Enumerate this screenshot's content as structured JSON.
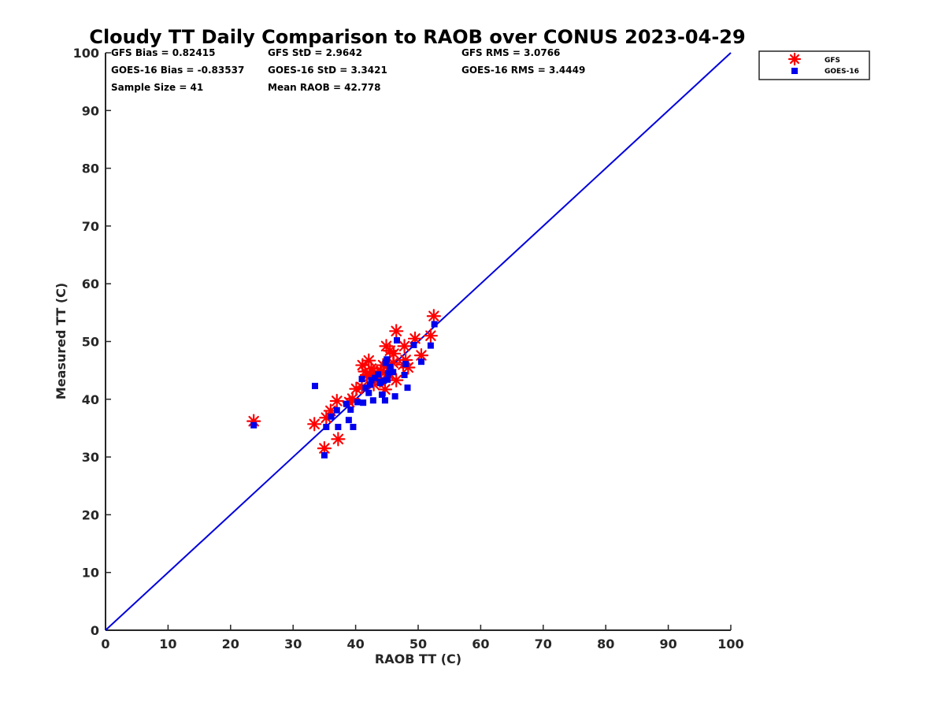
{
  "chart_data": {
    "type": "scatter",
    "title": "Cloudy TT Daily Comparison to RAOB over CONUS 2023-04-29",
    "xlabel": "RAOB TT (C)",
    "ylabel": "Measured TT (C)",
    "xlim": [
      0,
      100
    ],
    "ylim": [
      0,
      100
    ],
    "xticks": [
      "0",
      "10",
      "20",
      "30",
      "40",
      "50",
      "60",
      "70",
      "80",
      "90",
      "100"
    ],
    "yticks": [
      "0",
      "10",
      "20",
      "30",
      "40",
      "50",
      "60",
      "70",
      "80",
      "90",
      "100"
    ],
    "grid": false,
    "legend_position": "outside-top-right",
    "stats": {
      "gfs_bias": "GFS Bias = 0.82415",
      "gfs_std": "GFS StD = 2.9642",
      "gfs_rms": "GFS RMS = 3.0766",
      "goes_bias": "GOES-16 Bias = -0.83537",
      "goes_std": "GOES-16 StD = 3.3421",
      "goes_rms": "GOES-16 RMS = 3.4449",
      "sample_size": "Sample Size = 41",
      "mean_raob": "Mean RAOB = 42.778"
    },
    "reference_line": {
      "name": "1:1 line",
      "x": [
        0,
        100
      ],
      "y": [
        0,
        100
      ],
      "color": "#0000dd"
    },
    "series": [
      {
        "name": "GFS",
        "marker": "asterisk",
        "color": "#ff0000",
        "points": [
          [
            23.7,
            36.2
          ],
          [
            33.4,
            35.7
          ],
          [
            35.0,
            31.5
          ],
          [
            35.3,
            36.8
          ],
          [
            36.0,
            38.0
          ],
          [
            37.2,
            33.1
          ],
          [
            37.0,
            39.7
          ],
          [
            39.0,
            39.5
          ],
          [
            40.1,
            41.8
          ],
          [
            41.0,
            42.1
          ],
          [
            41.1,
            45.9
          ],
          [
            41.8,
            44.2
          ],
          [
            42.1,
            46.7
          ],
          [
            42.5,
            45.3
          ],
          [
            43.0,
            44.5
          ],
          [
            43.7,
            43.6
          ],
          [
            44.0,
            44.8
          ],
          [
            44.4,
            45.9
          ],
          [
            44.7,
            41.7
          ],
          [
            44.9,
            49.2
          ],
          [
            45.2,
            44.3
          ],
          [
            45.5,
            48.4
          ],
          [
            46.1,
            47.9
          ],
          [
            46.5,
            43.3
          ],
          [
            46.5,
            51.8
          ],
          [
            47.8,
            49.2
          ],
          [
            48.0,
            46.8
          ],
          [
            48.4,
            45.5
          ],
          [
            49.5,
            50.5
          ],
          [
            50.5,
            47.6
          ],
          [
            52.0,
            51.0
          ],
          [
            52.5,
            54.4
          ],
          [
            42.9,
            42.6
          ],
          [
            43.9,
            43.2
          ],
          [
            45.0,
            45.7
          ],
          [
            46.0,
            46.3
          ],
          [
            39.5,
            40.1
          ],
          [
            42.2,
            43.9
          ],
          [
            44.1,
            44.9
          ],
          [
            47.6,
            46.0
          ],
          [
            41.5,
            44.8
          ]
        ]
      },
      {
        "name": "GOES-16",
        "marker": "square",
        "color": "#0000ee",
        "points": [
          [
            23.7,
            35.5
          ],
          [
            33.5,
            42.3
          ],
          [
            35.0,
            30.3
          ],
          [
            35.3,
            35.2
          ],
          [
            36.1,
            37.0
          ],
          [
            37.0,
            38.1
          ],
          [
            37.2,
            35.2
          ],
          [
            38.5,
            39.2
          ],
          [
            38.9,
            36.4
          ],
          [
            39.2,
            38.2
          ],
          [
            39.6,
            35.2
          ],
          [
            40.3,
            39.5
          ],
          [
            41.0,
            43.5
          ],
          [
            41.2,
            39.4
          ],
          [
            41.6,
            42.0
          ],
          [
            42.1,
            41.1
          ],
          [
            42.3,
            42.5
          ],
          [
            42.8,
            39.8
          ],
          [
            43.1,
            43.7
          ],
          [
            43.6,
            44.3
          ],
          [
            43.9,
            42.8
          ],
          [
            44.2,
            40.8
          ],
          [
            44.5,
            43.2
          ],
          [
            44.7,
            39.8
          ],
          [
            45.0,
            46.9
          ],
          [
            45.2,
            44.5
          ],
          [
            45.5,
            45.6
          ],
          [
            46.0,
            44.7
          ],
          [
            46.3,
            40.5
          ],
          [
            46.6,
            50.2
          ],
          [
            47.8,
            44.2
          ],
          [
            48.0,
            46.1
          ],
          [
            48.3,
            42.0
          ],
          [
            49.3,
            49.4
          ],
          [
            50.5,
            46.5
          ],
          [
            52.0,
            49.3
          ],
          [
            52.6,
            53.0
          ],
          [
            44.0,
            43.0
          ],
          [
            45.1,
            43.4
          ],
          [
            42.5,
            43.3
          ],
          [
            44.8,
            46.3
          ]
        ]
      }
    ]
  }
}
